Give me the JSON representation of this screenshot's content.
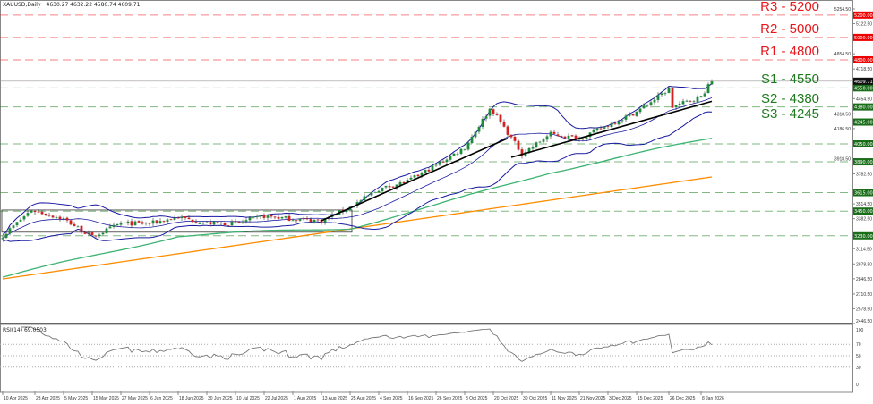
{
  "header": {
    "symbol": "XAUUSD,Daily",
    "ohlc": "4630.27 4632.22 4580.74 4609.71"
  },
  "rsi": {
    "label": "RSI(14) 69.0503",
    "ticks": [
      "100",
      "70",
      "50",
      "30",
      "0"
    ]
  },
  "colors": {
    "resistance": "#f03030",
    "support": "#2e8b2e",
    "bullish": "#1c8c3c",
    "bearish": "#d42020",
    "bollinger": "#1a1aa0",
    "ma_fast": "#3cb371",
    "ma_slow": "#ff8c00",
    "trendline": "#000000",
    "rsi_line": "#777777"
  },
  "levels": [
    {
      "name": "R3 - 5200",
      "price": 5200,
      "tag": "5200.00",
      "type": "resistance",
      "big_label": true
    },
    {
      "name": "R2 - 5000",
      "price": 5000,
      "tag": "5000.00",
      "type": "resistance",
      "big_label": true
    },
    {
      "name": "R1 - 4800",
      "price": 4800,
      "tag": "4800.00",
      "type": "resistance",
      "big_label": true
    },
    {
      "name": "S1 - 4550",
      "price": 4550,
      "tag": "4550.00",
      "type": "support",
      "big_label": true
    },
    {
      "name": "S2 - 4380",
      "price": 4380,
      "tag": "4380.00",
      "type": "support",
      "big_label": true
    },
    {
      "name": "S3 - 4245",
      "price": 4245,
      "tag": "4245.00",
      "type": "support",
      "big_label": true
    },
    {
      "name": "",
      "price": 4050,
      "tag": "4050.00",
      "type": "support",
      "big_label": false
    },
    {
      "name": "",
      "price": 3890,
      "tag": "3890.00",
      "type": "support",
      "big_label": false
    },
    {
      "name": "",
      "price": 3615,
      "tag": "3615.00",
      "type": "support",
      "big_label": false
    },
    {
      "name": "",
      "price": 3450,
      "tag": "3450.00",
      "type": "support",
      "big_label": false
    },
    {
      "name": "",
      "price": 3230,
      "tag": "3230.00",
      "type": "support",
      "big_label": false
    }
  ],
  "current_price": {
    "value": 4609.71,
    "tag": "4609.71"
  },
  "chart_data": {
    "type": "candlestick",
    "title": "XAUUSD,Daily",
    "ylim": [
      2446.5,
      5254.5
    ],
    "y_ticks": [
      "5254.50",
      "5122.50",
      "4854.50",
      "4718.50",
      "4454.50",
      "4318.50",
      "4186.50",
      "3918.50",
      "3782.50",
      "3514.50",
      "3382.50",
      "3114.50",
      "2978.50",
      "2846.50",
      "2710.50",
      "2578.50",
      "2446.50"
    ],
    "x_ticks": [
      "10 Apr 2025",
      "23 Apr 2025",
      "5 May 2025",
      "15 May 2025",
      "27 May 2025",
      "6 Jun 2025",
      "18 Jun 2025",
      "30 Jun 2025",
      "10 Jul 2025",
      "22 Jul 2025",
      "1 Aug 2025",
      "13 Aug 2025",
      "25 Aug 2025",
      "4 Sep 2025",
      "16 Sep 2025",
      "26 Sep 2025",
      "8 Oct 2025",
      "20 Oct 2025",
      "30 Oct 2025",
      "11 Nov 2025",
      "21 Nov 2025",
      "3 Dec 2025",
      "15 Dec 2025",
      "26 Dec 2025",
      "8 Jan 2026"
    ],
    "approx_close": [
      [
        "2025-04-10",
        3230
      ],
      [
        "2025-04-22",
        3460
      ],
      [
        "2025-05-05",
        3380
      ],
      [
        "2025-05-15",
        3220
      ],
      [
        "2025-05-27",
        3340
      ],
      [
        "2025-06-06",
        3340
      ],
      [
        "2025-06-18",
        3395
      ],
      [
        "2025-06-30",
        3340
      ],
      [
        "2025-07-10",
        3340
      ],
      [
        "2025-07-22",
        3405
      ],
      [
        "2025-08-01",
        3380
      ],
      [
        "2025-08-13",
        3365
      ],
      [
        "2025-08-25",
        3485
      ],
      [
        "2025-09-04",
        3645
      ],
      [
        "2025-09-16",
        3715
      ],
      [
        "2025-09-26",
        3860
      ],
      [
        "2025-10-08",
        4018
      ],
      [
        "2025-10-17",
        4360
      ],
      [
        "2025-10-20",
        4337
      ],
      [
        "2025-10-30",
        3962
      ],
      [
        "2025-11-11",
        4138
      ],
      [
        "2025-11-21",
        4098
      ],
      [
        "2025-12-03",
        4218
      ],
      [
        "2025-12-15",
        4337
      ],
      [
        "2025-12-26",
        4537
      ],
      [
        "2025-12-29",
        4380
      ],
      [
        "2026-01-08",
        4473
      ],
      [
        "2026-01-13",
        4609.71
      ]
    ],
    "ma_slow": [
      [
        "2025-04-10",
        2845
      ],
      [
        "2026-01-13",
        3755
      ]
    ],
    "ma_fast": [
      [
        "2025-04-10",
        2860
      ],
      [
        "2025-06-18",
        3230
      ],
      [
        "2025-08-25",
        3300
      ],
      [
        "2025-09-26",
        3500
      ],
      [
        "2025-11-11",
        3800
      ],
      [
        "2026-01-13",
        4100
      ]
    ],
    "trendlines": [
      {
        "from": [
          "2025-08-13",
          3365
        ],
        "to": [
          "2025-10-24",
          4100
        ]
      },
      {
        "from": [
          "2025-10-27",
          3930
        ],
        "to": [
          "2026-01-13",
          4430
        ]
      }
    ],
    "rsi_last": 69.0503,
    "rsi_levels": [
      70,
      50,
      30
    ]
  }
}
